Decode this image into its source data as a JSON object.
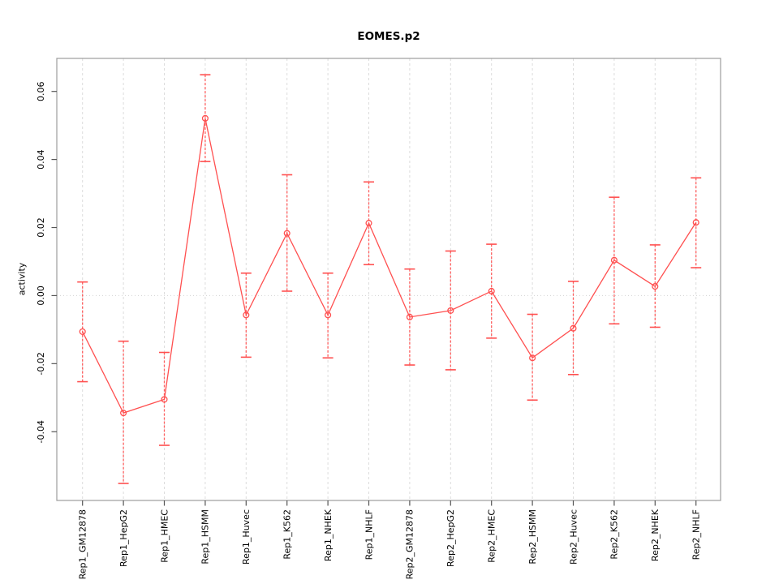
{
  "title": "EOMES.p2",
  "colors": {
    "series": "#ff5050",
    "error_stem": "#ff6060",
    "grid": "#dcdcdc",
    "zero_line": "#d3d3d3",
    "box": "#9c9c9c",
    "tick": "#555555",
    "text": "#000000",
    "background": "#ffffff"
  },
  "chart_data": {
    "type": "line",
    "title": "EOMES.p2",
    "xlabel": "",
    "ylabel": "activity",
    "legend": "none",
    "marker": "open-circle",
    "grid": {
      "vertical": "dashed line at every category",
      "horizontal": "dotted line at y=0 only"
    },
    "categories": [
      "Rep1_GM12878",
      "Rep1_HepG2",
      "Rep1_HMEC",
      "Rep1_HSMM",
      "Rep1_Huvec",
      "Rep1_K562",
      "Rep1_NHEK",
      "Rep1_NHLF",
      "Rep2_GM12878",
      "Rep2_HepG2",
      "Rep2_HMEC",
      "Rep2_HSMM",
      "Rep2_Huvec",
      "Rep2_K562",
      "Rep2_NHEK",
      "Rep2_NHLF"
    ],
    "series": [
      {
        "name": "activity",
        "values": [
          -0.0106,
          -0.0345,
          -0.0305,
          0.0521,
          -0.0057,
          0.0183,
          -0.0057,
          0.0213,
          -0.0063,
          -0.0044,
          0.0013,
          -0.0183,
          -0.0096,
          0.0104,
          0.0027,
          0.0215
        ],
        "error_high": [
          0.004,
          -0.0134,
          -0.0167,
          0.0649,
          0.0066,
          0.0355,
          0.0066,
          0.0334,
          0.0078,
          0.0131,
          0.0151,
          -0.0055,
          0.0042,
          0.0289,
          0.0149,
          0.0346
        ],
        "error_low": [
          -0.0253,
          -0.0552,
          -0.044,
          0.0394,
          -0.0181,
          0.0013,
          -0.0183,
          0.0091,
          -0.0204,
          -0.0218,
          -0.0125,
          -0.0307,
          -0.0232,
          -0.0083,
          -0.0093,
          0.0082
        ]
      }
    ],
    "yticks": [
      -0.04,
      -0.02,
      0,
      0.02,
      0.04,
      0.06
    ],
    "ytick_labels": [
      "-0.04",
      "-0.02",
      "0.00",
      "0.02",
      "0.04",
      "0.06"
    ],
    "ylim": [
      -0.0602,
      0.0697
    ]
  }
}
